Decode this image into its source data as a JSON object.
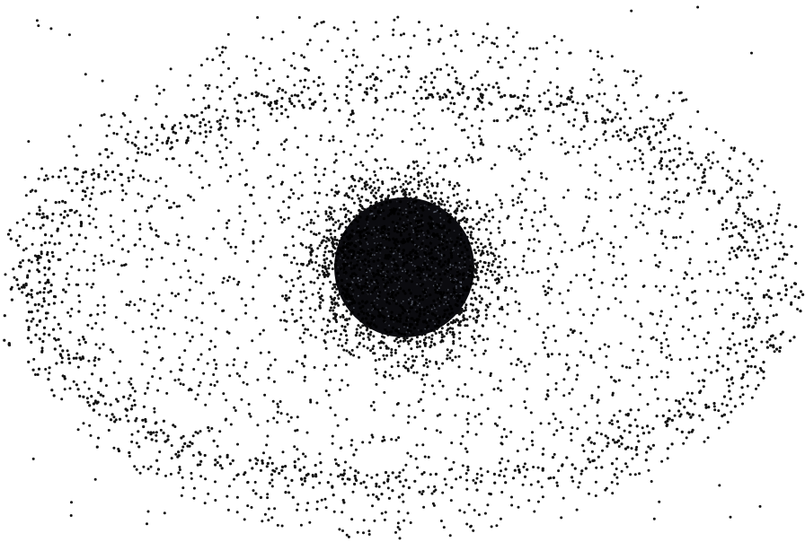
{
  "image": {
    "background_color": "#ffffff",
    "dot_color": "#111111",
    "core_color": "#0b0b0f",
    "core_highlight_color": "#aab4c8"
  }
}
